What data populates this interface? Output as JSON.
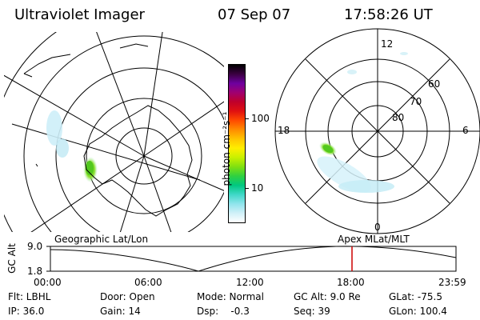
{
  "header": {
    "instrument": "Ultraviolet Imager",
    "date": "07 Sep 07",
    "time": "17:58:26 UT"
  },
  "colorbar": {
    "unit_label": "photon cm⁻²s⁻¹",
    "ticks": [
      "100",
      "10"
    ],
    "colors": [
      "#000000",
      "#3a0040",
      "#6e00a0",
      "#a00070",
      "#c0002a",
      "#e01010",
      "#ff4a00",
      "#ff8c00",
      "#ffc400",
      "#ffee00",
      "#c8f000",
      "#80e010",
      "#30d040",
      "#00c880",
      "#40d8c8",
      "#90e4ec",
      "#d0f0f8",
      "#ffffff"
    ]
  },
  "geo_map": {
    "subtitle": "Geographic Lat/Lon"
  },
  "polar_map": {
    "subtitle": "Apex  MLat/MLT",
    "mlt_labels": [
      "12",
      "6",
      "0",
      "18"
    ],
    "lat_labels": [
      "60",
      "70",
      "80"
    ]
  },
  "timeline": {
    "axis_label": "GC Alt",
    "y_ticks": [
      "9.0",
      "1.8"
    ],
    "x_ticks": [
      "00:00",
      "06:00",
      "12:00",
      "18:00",
      "23:59"
    ],
    "marker_color": "#cc0000"
  },
  "footer": {
    "flt": "Flt: LBHL",
    "ip": "IP: 36.0",
    "door": "Door: Open",
    "gain": "Gain: 14",
    "mode": "Mode: Normal",
    "dsp": "Dsp:    -0.3",
    "gcalt": "GC Alt: 9.0 Re",
    "seq": "Seq: 39",
    "glat": "GLat: -75.5",
    "glon": "GLon: 100.4"
  }
}
